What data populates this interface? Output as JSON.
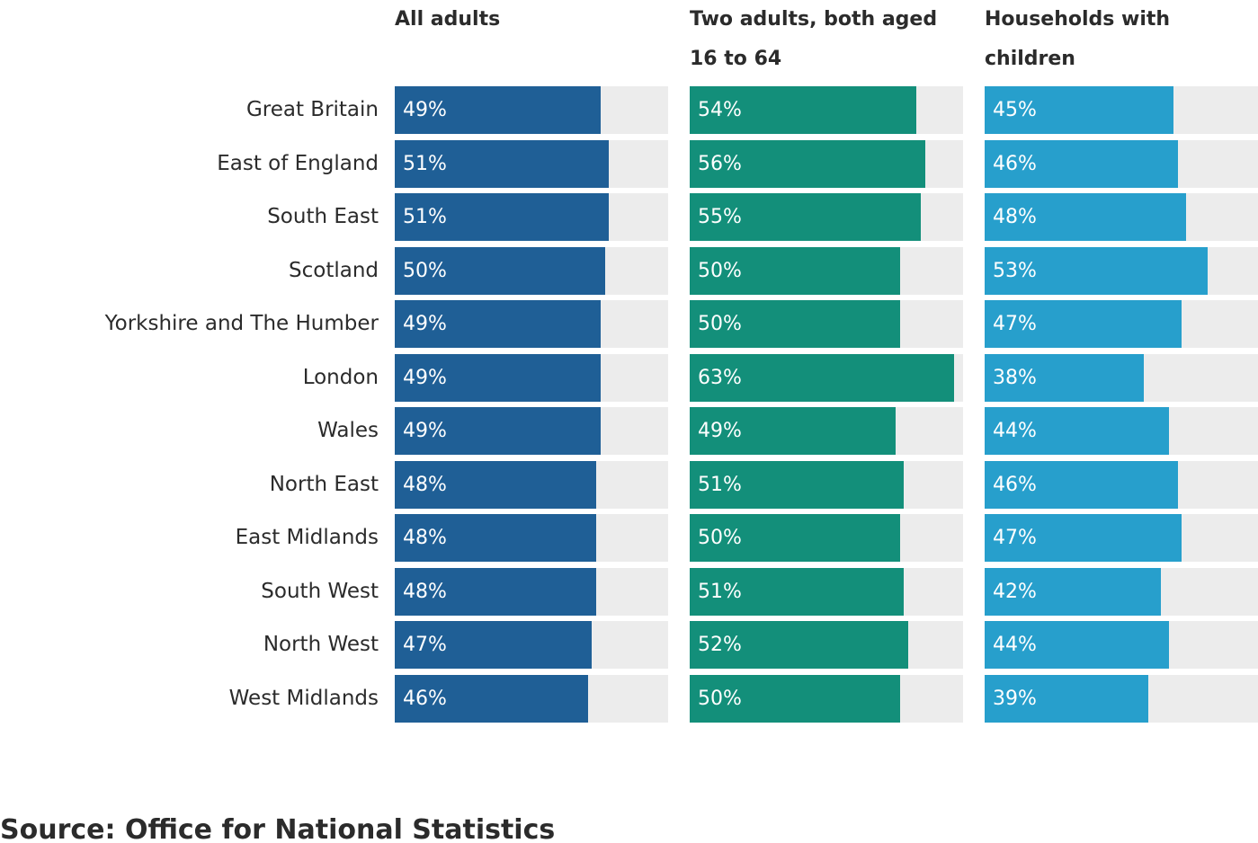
{
  "chart_data": {
    "type": "bar",
    "orientation": "horizontal",
    "categories": [
      "Great Britain",
      "East of England",
      "South East",
      "Scotland",
      "Yorkshire and The Humber",
      "London",
      "Wales",
      "North East",
      "East Midlands",
      "South West",
      "North West",
      "West Midlands"
    ],
    "xlim": [
      0,
      100
    ],
    "value_suffix": "%",
    "grid": false,
    "series": [
      {
        "name": "All adults",
        "color": "#1f5f96",
        "values": [
          49,
          51,
          51,
          50,
          49,
          49,
          49,
          48,
          48,
          48,
          47,
          46
        ]
      },
      {
        "name": "Two adults, both aged 16 to 64",
        "color": "#138f7a",
        "values": [
          54,
          56,
          55,
          50,
          50,
          63,
          49,
          51,
          50,
          51,
          52,
          50
        ]
      },
      {
        "name": "Households with children",
        "color": "#279fcc",
        "values": [
          45,
          46,
          48,
          53,
          47,
          38,
          44,
          46,
          47,
          42,
          44,
          39
        ]
      }
    ],
    "track_color": "#ececec",
    "source": "Source: Office for National Statistics"
  }
}
